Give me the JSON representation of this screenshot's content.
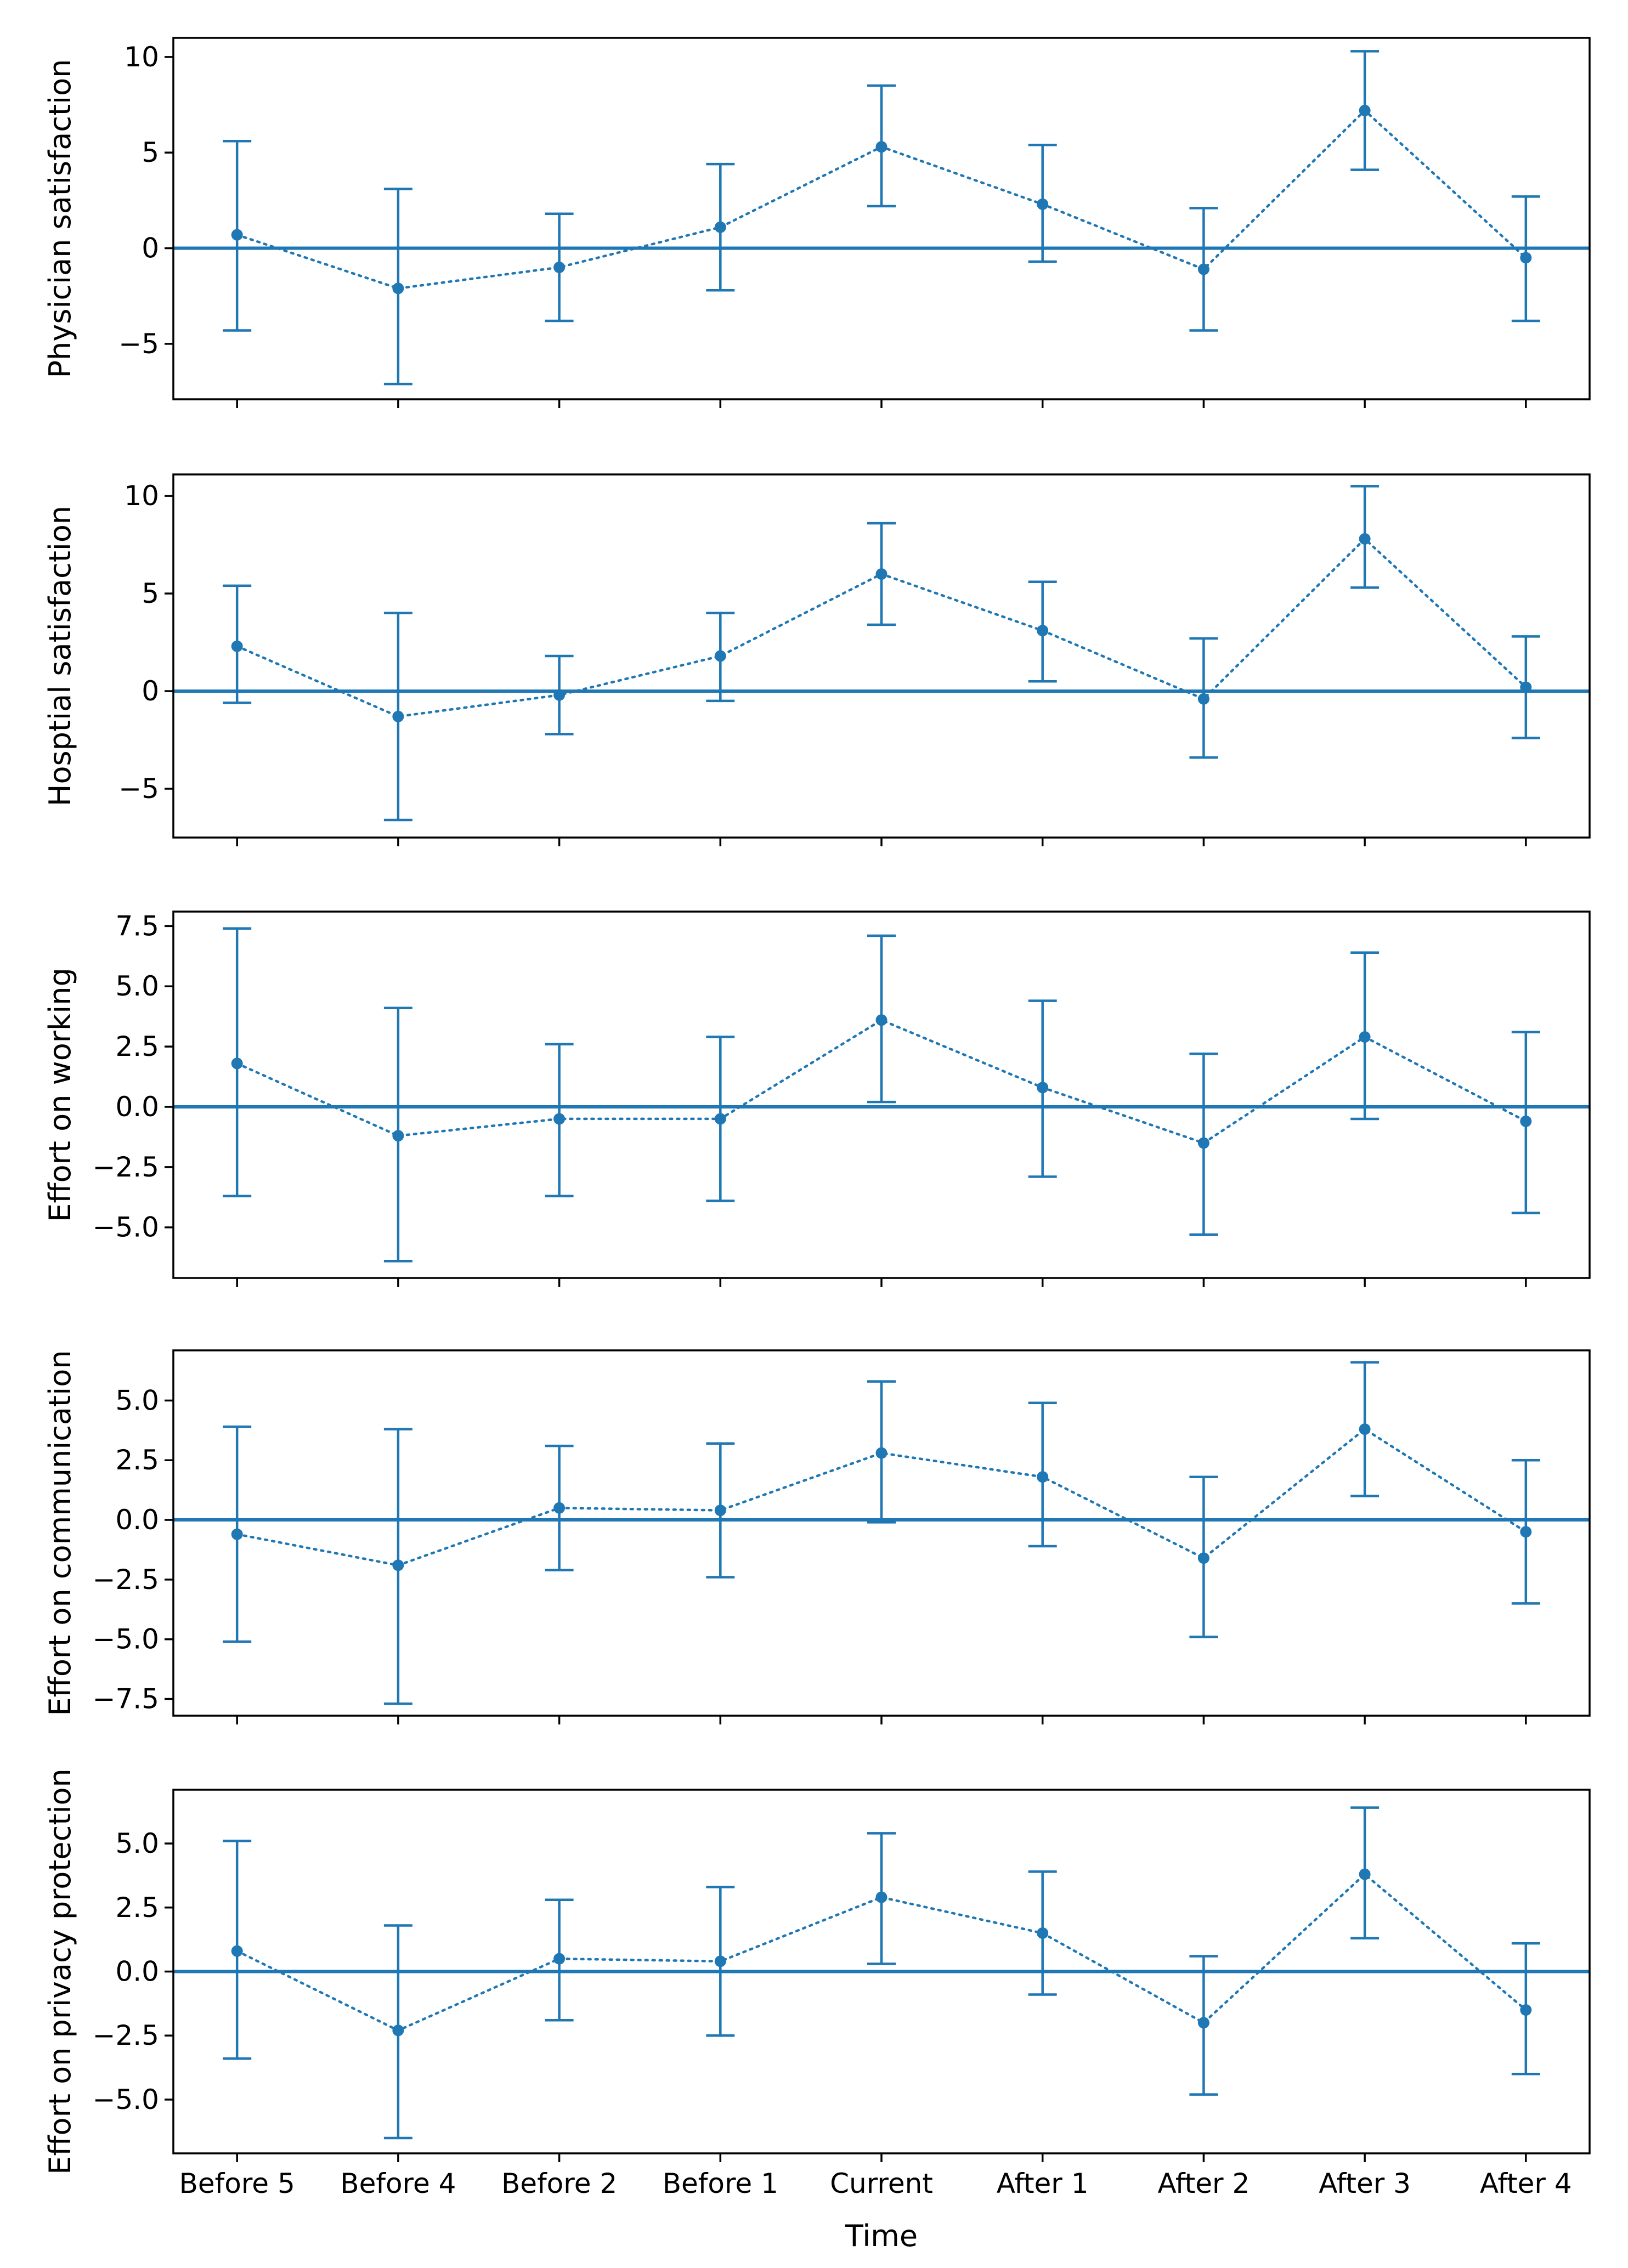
{
  "chart_data": {
    "type": "line",
    "shared_x_label": "Time",
    "categories": [
      "Before 5",
      "Before 4",
      "Before 2",
      "Before 1",
      "Current",
      "After 1",
      "After 2",
      "After 3",
      "After 4"
    ],
    "color": "#1f77b4",
    "reference_line_y": 0,
    "grid": false,
    "legend": "none",
    "panels": [
      {
        "ylabel": "Physician satisfaction",
        "ylim": [
          -7.9,
          11.0
        ],
        "yticks": [
          -5,
          0,
          5,
          10
        ],
        "ytick_labels": [
          "−5",
          "0",
          "5",
          "10"
        ],
        "values": [
          0.7,
          -2.1,
          -1.0,
          1.1,
          5.3,
          2.3,
          -1.1,
          7.2,
          -0.5
        ],
        "err_low": [
          -4.3,
          -7.1,
          -3.8,
          -2.2,
          2.2,
          -0.7,
          -4.3,
          4.1,
          -3.8
        ],
        "err_high": [
          5.6,
          3.1,
          1.8,
          4.4,
          8.5,
          5.4,
          2.1,
          10.3,
          2.7
        ]
      },
      {
        "ylabel": "Hosptial satisfaction",
        "ylim": [
          -7.5,
          11.1
        ],
        "yticks": [
          -5,
          0,
          5,
          10
        ],
        "ytick_labels": [
          "−5",
          "0",
          "5",
          "10"
        ],
        "values": [
          2.3,
          -1.3,
          -0.2,
          1.8,
          6.0,
          3.1,
          -0.4,
          7.8,
          0.2
        ],
        "err_low": [
          -0.6,
          -6.6,
          -2.2,
          -0.5,
          3.4,
          0.5,
          -3.4,
          5.3,
          -2.4
        ],
        "err_high": [
          5.4,
          4.0,
          1.8,
          4.0,
          8.6,
          5.6,
          2.7,
          10.5,
          2.8
        ]
      },
      {
        "ylabel": "Effort on working",
        "ylim": [
          -7.1,
          8.1
        ],
        "yticks": [
          -5.0,
          -2.5,
          0.0,
          2.5,
          5.0,
          7.5
        ],
        "ytick_labels": [
          "−5.0",
          "−2.5",
          "0.0",
          "2.5",
          "5.0",
          "7.5"
        ],
        "values": [
          1.8,
          -1.2,
          -0.5,
          -0.5,
          3.6,
          0.8,
          -1.5,
          2.9,
          -0.6
        ],
        "err_low": [
          -3.7,
          -6.4,
          -3.7,
          -3.9,
          0.2,
          -2.9,
          -5.3,
          -0.5,
          -4.4
        ],
        "err_high": [
          7.4,
          4.1,
          2.6,
          2.9,
          7.1,
          4.4,
          2.2,
          6.4,
          3.1
        ]
      },
      {
        "ylabel": "Effort on communication",
        "ylim": [
          -8.2,
          7.1
        ],
        "yticks": [
          -7.5,
          -5.0,
          -2.5,
          0.0,
          2.5,
          5.0
        ],
        "ytick_labels": [
          "−7.5",
          "−5.0",
          "−2.5",
          "0.0",
          "2.5",
          "5.0"
        ],
        "values": [
          -0.6,
          -1.9,
          0.5,
          0.4,
          2.8,
          1.8,
          -1.6,
          3.8,
          -0.5
        ],
        "err_low": [
          -5.1,
          -7.7,
          -2.1,
          -2.4,
          -0.1,
          -1.1,
          -4.9,
          1.0,
          -3.5
        ],
        "err_high": [
          3.9,
          3.8,
          3.1,
          3.2,
          5.8,
          4.9,
          1.8,
          6.6,
          2.5
        ]
      },
      {
        "ylabel": "Effort on privacy protection",
        "ylim": [
          -7.1,
          7.1
        ],
        "yticks": [
          -5.0,
          -2.5,
          0.0,
          2.5,
          5.0
        ],
        "ytick_labels": [
          "−5.0",
          "−2.5",
          "0.0",
          "2.5",
          "5.0"
        ],
        "values": [
          0.8,
          -2.3,
          0.5,
          0.4,
          2.9,
          1.5,
          -2.0,
          3.8,
          -1.5
        ],
        "err_low": [
          -3.4,
          -6.5,
          -1.9,
          -2.5,
          0.3,
          -0.9,
          -4.8,
          1.3,
          -4.0
        ],
        "err_high": [
          5.1,
          1.8,
          2.8,
          3.3,
          5.4,
          3.9,
          0.6,
          6.4,
          1.1
        ]
      }
    ]
  }
}
